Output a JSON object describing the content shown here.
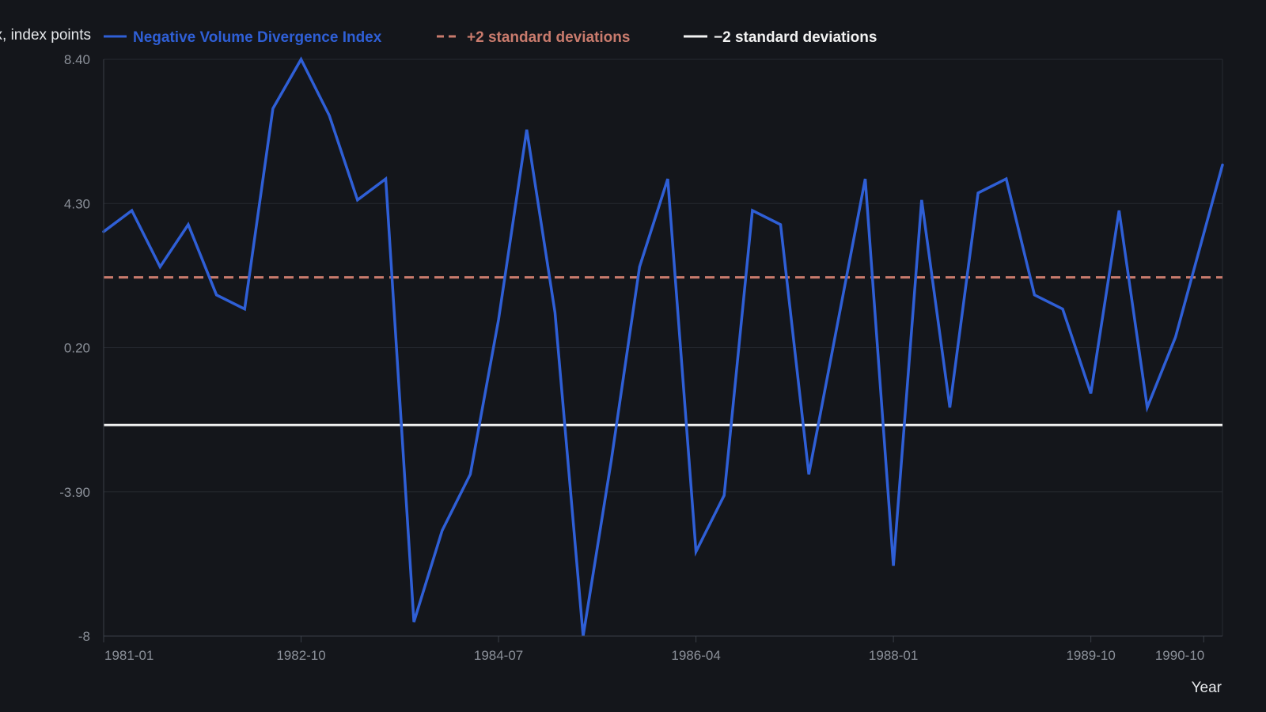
{
  "chart_data": {
    "type": "line",
    "title": "",
    "xlabel": "Year",
    "ylabel": "…x, index points",
    "ylim": [
      -8,
      8.4
    ],
    "yticks": [
      "8.40",
      "4.30",
      "0.20",
      "-3.90",
      "-8"
    ],
    "ytick_values": [
      8.4,
      4.3,
      0.2,
      -3.9,
      -8
    ],
    "xlim": [
      "1981-01",
      "1990-12"
    ],
    "xticks": [
      "1981-01",
      "1982-10",
      "1984-07",
      "1986-04",
      "1988-01",
      "1989-10",
      "1990-10"
    ],
    "grid": true,
    "legend_position": "top",
    "series": [
      {
        "name": "Negative Volume Divergence Index",
        "color": "#2f5fd6",
        "style": "solid",
        "x": [
          "1981-01",
          "1981-04",
          "1981-07",
          "1981-10",
          "1982-01",
          "1982-04",
          "1982-07",
          "1982-10",
          "1983-01",
          "1983-04",
          "1983-07",
          "1983-10",
          "1984-01",
          "1984-04",
          "1984-07",
          "1984-10",
          "1985-01",
          "1985-04",
          "1985-07",
          "1985-10",
          "1986-01",
          "1986-04",
          "1986-07",
          "1986-10",
          "1987-01",
          "1987-04",
          "1987-07",
          "1987-10",
          "1988-01",
          "1988-04",
          "1988-07",
          "1988-10",
          "1989-01",
          "1989-04",
          "1989-07",
          "1989-10",
          "1990-01",
          "1990-04",
          "1990-07",
          "1990-12"
        ],
        "values": [
          3.5,
          4.1,
          2.5,
          3.7,
          1.7,
          1.3,
          7.0,
          8.4,
          6.8,
          4.4,
          5.0,
          -7.6,
          -5.0,
          -3.4,
          1.0,
          6.4,
          1.2,
          -8.0,
          -3.0,
          2.5,
          5.0,
          -5.6,
          -4.0,
          4.1,
          3.7,
          -3.4,
          0.8,
          5.0,
          -6.0,
          4.4,
          -1.5,
          4.6,
          5.0,
          1.7,
          1.3,
          -1.1,
          4.1,
          -1.5,
          0.5,
          5.4
        ]
      },
      {
        "name": "+2 standard deviations",
        "color": "#c97b6d",
        "style": "dashed",
        "constant": 2.2
      },
      {
        "name": "−2 standard deviations",
        "color": "#f2f2f2",
        "style": "solid",
        "constant": -2.0
      }
    ]
  }
}
